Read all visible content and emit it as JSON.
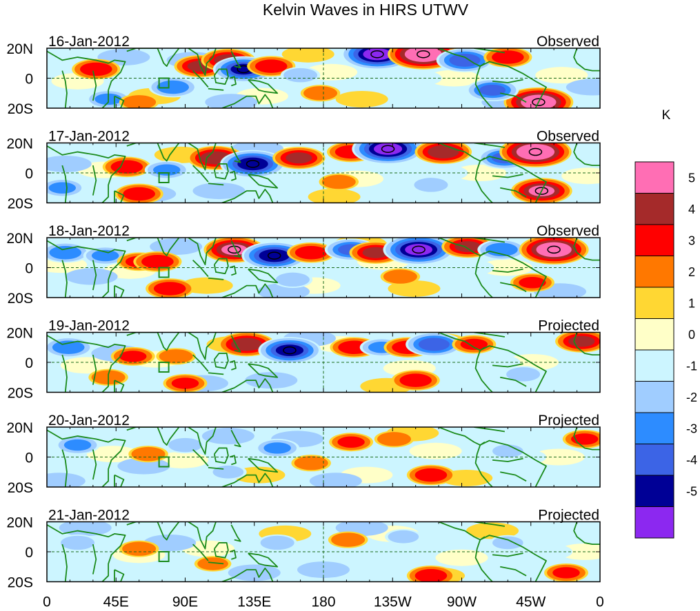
{
  "chart_data": {
    "type": "heatmap",
    "title": "Kelvin Waves in HIRS UTWV",
    "x_ticks": [
      "0",
      "45E",
      "90E",
      "135E",
      "180",
      "135W",
      "90W",
      "45W",
      "0"
    ],
    "x_tick_lon": [
      0,
      45,
      90,
      135,
      180,
      225,
      270,
      315,
      360
    ],
    "y_ticks": [
      "20N",
      "0",
      "20S"
    ],
    "y_tick_lat": [
      20,
      0,
      -20
    ],
    "xlim": [
      0,
      360
    ],
    "ylim": [
      -20,
      20
    ],
    "colorbar": {
      "unit": "K",
      "labels": [
        "5",
        "4",
        "3",
        "2",
        "1",
        "0",
        "-1",
        "-2",
        "-3",
        "-4",
        "-5"
      ],
      "colors": [
        "#ff6eb4",
        "#a52a2a",
        "#ff0000",
        "#ff7800",
        "#ffd733",
        "#ffffc8",
        "#ccf5ff",
        "#a0cdff",
        "#2d8cff",
        "#3c64e6",
        "#000096",
        "#8c28f0"
      ]
    },
    "panels": [
      {
        "date": "16-Jan-2012",
        "status": "Observed",
        "anomalies": [
          {
            "lon": 32,
            "lat": 6,
            "value": 2.5
          },
          {
            "lon": 82,
            "lat": -6,
            "value": -2.5
          },
          {
            "lon": 100,
            "lat": 8,
            "value": 3
          },
          {
            "lon": 118,
            "lat": 12,
            "value": 3.2
          },
          {
            "lon": 128,
            "lat": 6,
            "value": -4
          },
          {
            "lon": 146,
            "lat": 8,
            "value": 2.5
          },
          {
            "lon": 165,
            "lat": 2,
            "value": -1.5
          },
          {
            "lon": 215,
            "lat": 16,
            "value": -5.3
          },
          {
            "lon": 245,
            "lat": 16,
            "value": 5.2
          },
          {
            "lon": 272,
            "lat": 12,
            "value": -3.5
          },
          {
            "lon": 300,
            "lat": 14,
            "value": 2.5
          },
          {
            "lon": 320,
            "lat": -16,
            "value": 5
          },
          {
            "lon": 290,
            "lat": -8,
            "value": -3
          },
          {
            "lon": 40,
            "lat": -14,
            "value": -2
          },
          {
            "lon": 178,
            "lat": -10,
            "value": 1.5
          },
          {
            "lon": 60,
            "lat": -16,
            "value": 1.5
          }
        ]
      },
      {
        "date": "17-Jan-2012",
        "status": "Observed",
        "anomalies": [
          {
            "lon": 52,
            "lat": 4,
            "value": 2.5
          },
          {
            "lon": 78,
            "lat": 2,
            "value": -2
          },
          {
            "lon": 110,
            "lat": 10,
            "value": 3.5
          },
          {
            "lon": 134,
            "lat": 6,
            "value": -4.5
          },
          {
            "lon": 164,
            "lat": 10,
            "value": 3
          },
          {
            "lon": 198,
            "lat": 14,
            "value": 2.5
          },
          {
            "lon": 222,
            "lat": 16,
            "value": -5.3
          },
          {
            "lon": 258,
            "lat": 14,
            "value": 3.5
          },
          {
            "lon": 298,
            "lat": 10,
            "value": -3
          },
          {
            "lon": 318,
            "lat": 14,
            "value": 5.3
          },
          {
            "lon": 322,
            "lat": -12,
            "value": 4
          },
          {
            "lon": 60,
            "lat": -14,
            "value": 2.5
          },
          {
            "lon": 10,
            "lat": -10,
            "value": -2
          },
          {
            "lon": 190,
            "lat": -6,
            "value": 1.5
          },
          {
            "lon": 250,
            "lat": -8,
            "value": -1.5
          }
        ]
      },
      {
        "date": "18-Jan-2012",
        "status": "Observed",
        "anomalies": [
          {
            "lon": 12,
            "lat": 10,
            "value": -2.5
          },
          {
            "lon": 38,
            "lat": 8,
            "value": -2
          },
          {
            "lon": 60,
            "lat": 4,
            "value": 2
          },
          {
            "lon": 72,
            "lat": 4,
            "value": 2.5
          },
          {
            "lon": 122,
            "lat": 12,
            "value": 4
          },
          {
            "lon": 148,
            "lat": 8,
            "value": -4.5
          },
          {
            "lon": 172,
            "lat": 10,
            "value": 2.5
          },
          {
            "lon": 198,
            "lat": 12,
            "value": -3
          },
          {
            "lon": 214,
            "lat": 10,
            "value": 3
          },
          {
            "lon": 242,
            "lat": 12,
            "value": -5.2
          },
          {
            "lon": 274,
            "lat": 14,
            "value": 3
          },
          {
            "lon": 296,
            "lat": 12,
            "value": -2.5
          },
          {
            "lon": 330,
            "lat": 12,
            "value": 5
          },
          {
            "lon": 80,
            "lat": -14,
            "value": 2.5
          },
          {
            "lon": 316,
            "lat": -10,
            "value": 2
          },
          {
            "lon": 230,
            "lat": -6,
            "value": 1.5
          },
          {
            "lon": 160,
            "lat": -8,
            "value": -1.5
          }
        ]
      },
      {
        "date": "19-Jan-2012",
        "status": "Projected",
        "anomalies": [
          {
            "lon": 14,
            "lat": 10,
            "value": -2.5
          },
          {
            "lon": 56,
            "lat": 4,
            "value": 2
          },
          {
            "lon": 84,
            "lat": 4,
            "value": 1.5
          },
          {
            "lon": 130,
            "lat": 12,
            "value": 3.5
          },
          {
            "lon": 158,
            "lat": 8,
            "value": -4.2
          },
          {
            "lon": 200,
            "lat": 10,
            "value": 2.5
          },
          {
            "lon": 218,
            "lat": 10,
            "value": -2
          },
          {
            "lon": 235,
            "lat": 10,
            "value": 2.5
          },
          {
            "lon": 252,
            "lat": 12,
            "value": -3.5
          },
          {
            "lon": 278,
            "lat": 12,
            "value": 2
          },
          {
            "lon": 348,
            "lat": 14,
            "value": 3
          },
          {
            "lon": 240,
            "lat": -12,
            "value": 2.5
          },
          {
            "lon": 90,
            "lat": -14,
            "value": 2
          },
          {
            "lon": 310,
            "lat": -8,
            "value": -1.5
          },
          {
            "lon": 40,
            "lat": -10,
            "value": 1.5
          }
        ]
      },
      {
        "date": "20-Jan-2012",
        "status": "Projected",
        "anomalies": [
          {
            "lon": 20,
            "lat": 8,
            "value": -2
          },
          {
            "lon": 66,
            "lat": 2,
            "value": 1.5
          },
          {
            "lon": 150,
            "lat": 6,
            "value": -2
          },
          {
            "lon": 172,
            "lat": -4,
            "value": 1.5
          },
          {
            "lon": 198,
            "lat": 10,
            "value": 2
          },
          {
            "lon": 226,
            "lat": 12,
            "value": 1.5
          },
          {
            "lon": 250,
            "lat": -12,
            "value": 2.5
          },
          {
            "lon": 350,
            "lat": 12,
            "value": 2
          },
          {
            "lon": 90,
            "lat": 8,
            "value": -1.5
          },
          {
            "lon": 118,
            "lat": -10,
            "value": -1.2
          },
          {
            "lon": 300,
            "lat": 4,
            "value": -1.2
          }
        ]
      },
      {
        "date": "21-Jan-2012",
        "status": "Projected",
        "anomalies": [
          {
            "lon": 20,
            "lat": 6,
            "value": -1.5
          },
          {
            "lon": 60,
            "lat": 2,
            "value": 1.5
          },
          {
            "lon": 150,
            "lat": 6,
            "value": -1.5
          },
          {
            "lon": 196,
            "lat": 8,
            "value": 1.5
          },
          {
            "lon": 232,
            "lat": 10,
            "value": -1.2
          },
          {
            "lon": 250,
            "lat": -16,
            "value": 2.5
          },
          {
            "lon": 338,
            "lat": -14,
            "value": 2
          },
          {
            "lon": 108,
            "lat": -8,
            "value": 1.2
          },
          {
            "lon": 300,
            "lat": 6,
            "value": -1.2
          }
        ]
      }
    ]
  }
}
